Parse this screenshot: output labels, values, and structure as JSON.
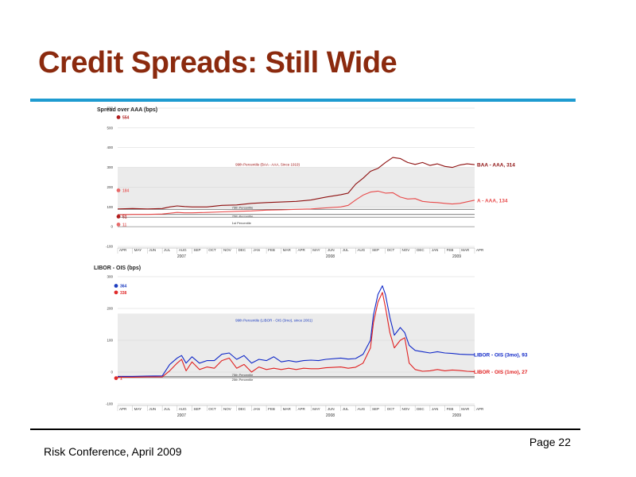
{
  "slide": {
    "title": "Credit Spreads: Still Wide",
    "footer_left": "Risk Conference, April 2009",
    "footer_right": "Page 22",
    "colors": {
      "title": "#8b2a0e",
      "rule": "#1e9bd0"
    }
  },
  "chart_data": [
    {
      "type": "line",
      "title": "Spread over AAA (bps)",
      "ylim": [
        -100,
        600
      ],
      "yticks": [
        "-100",
        "0",
        "100",
        "200",
        "300",
        "400",
        "500",
        "600"
      ],
      "months": [
        "APR",
        "MAY",
        "JUN",
        "JUL",
        "AUG",
        "SEP",
        "OCT",
        "NOV",
        "DEC",
        "JAN",
        "FEB",
        "MAR",
        "APR",
        "MAY",
        "JUN",
        "JUL",
        "AUG",
        "SEP",
        "OCT",
        "NOV",
        "DEC",
        "JAN",
        "FEB",
        "MAR",
        "APR"
      ],
      "years": [
        {
          "label": "2007",
          "month_index": 4
        },
        {
          "label": "2008",
          "month_index": 14
        },
        {
          "label": "2009",
          "month_index": 22.5
        }
      ],
      "band": {
        "low": 95,
        "high": 300,
        "label": "99th Percentile (BAA - AAA, Since 1919)"
      },
      "reference_lines": [
        {
          "value": 88,
          "label": "75th Percentile"
        },
        {
          "value": 62,
          "label": "25th Percentile"
        },
        {
          "value": 48,
          "label": "1st Percentile"
        }
      ],
      "left_markers": [
        {
          "value": 554,
          "label": "554",
          "color": "#b01c1c"
        },
        {
          "value": 184,
          "label": "184",
          "color": "#e86a6a"
        },
        {
          "value": 51,
          "label": "51",
          "color": "#b01c1c"
        },
        {
          "value": 11,
          "label": "11",
          "color": "#e86a6a"
        }
      ],
      "series": [
        {
          "name": "BAA - AAA",
          "end_label": "BAA - AAA, 314",
          "color": "#8e1010",
          "x": [
            0,
            1,
            2,
            3,
            3.5,
            4,
            4.5,
            5,
            6,
            7,
            8,
            9,
            10,
            11,
            12,
            13,
            14,
            15,
            15.5,
            16,
            16.5,
            17,
            17.5,
            18,
            18.5,
            19,
            19.5,
            20,
            20.5,
            21,
            21.5,
            22,
            22.5,
            23,
            23.5,
            24
          ],
          "y": [
            90,
            92,
            90,
            92,
            100,
            105,
            102,
            100,
            100,
            108,
            110,
            118,
            122,
            125,
            128,
            135,
            150,
            162,
            170,
            215,
            245,
            280,
            295,
            325,
            350,
            345,
            325,
            315,
            325,
            310,
            318,
            305,
            300,
            312,
            318,
            314
          ]
        },
        {
          "name": "A - AAA",
          "end_label": "A - AAA, 134",
          "color": "#e84a4a",
          "x": [
            0,
            1,
            2,
            3,
            3.5,
            4,
            4.5,
            5,
            6,
            7,
            8,
            9,
            10,
            11,
            12,
            13,
            14,
            15,
            15.5,
            16,
            16.5,
            17,
            17.5,
            18,
            18.5,
            19,
            19.5,
            20,
            20.5,
            21,
            21.5,
            22,
            22.5,
            23,
            23.5,
            24
          ],
          "y": [
            60,
            62,
            62,
            64,
            68,
            72,
            70,
            70,
            72,
            75,
            78,
            80,
            84,
            85,
            88,
            90,
            95,
            100,
            108,
            135,
            160,
            175,
            180,
            170,
            172,
            150,
            140,
            142,
            128,
            124,
            122,
            118,
            115,
            118,
            126,
            134
          ]
        }
      ]
    },
    {
      "type": "line",
      "title": "LIBOR - OIS (bps)",
      "ylim": [
        -100,
        400
      ],
      "yticks": [
        "-100",
        "0",
        "100",
        "200",
        "300"
      ],
      "months": [
        "APR",
        "MAY",
        "JUN",
        "JUL",
        "AUG",
        "SEP",
        "OCT",
        "NOV",
        "DEC",
        "JAN",
        "FEB",
        "MAR",
        "APR",
        "MAY",
        "JUN",
        "JUL",
        "AUG",
        "SEP",
        "OCT",
        "NOV",
        "DEC",
        "JAN",
        "FEB",
        "MAR",
        "APR"
      ],
      "years": [
        {
          "label": "2007",
          "month_index": 4
        },
        {
          "label": "2008",
          "month_index": 14
        },
        {
          "label": "2009",
          "month_index": 22.5
        }
      ],
      "band": {
        "low": 10,
        "high": 255,
        "label": "99th Percentile (LIBOR - OIS (3mo), since 2001)"
      },
      "reference_lines": [
        {
          "value": 7,
          "label": "75th Percentile"
        },
        {
          "value": 3,
          "label": "25th Percentile"
        }
      ],
      "left_markers": [
        {
          "value": 364,
          "label": "364",
          "color": "#1c3cc0"
        },
        {
          "value": 338,
          "label": "338",
          "color": "#e02a2a"
        },
        {
          "value": 1,
          "label": "1",
          "color": "#e02a2a"
        }
      ],
      "series": [
        {
          "name": "LIBOR - OIS (3mo)",
          "end_label": "LIBOR - OIS (3mo), 93",
          "color": "#1028c8",
          "x": [
            0,
            1,
            2,
            3,
            3.5,
            4,
            4.3,
            4.6,
            5,
            5.5,
            6,
            6.5,
            7,
            7.5,
            8,
            8.5,
            9,
            9.5,
            10,
            10.5,
            11,
            11.5,
            12,
            12.5,
            13,
            13.5,
            14,
            15,
            15.5,
            16,
            16.5,
            17,
            17.2,
            17.5,
            17.8,
            18,
            18.3,
            18.6,
            19,
            19.3,
            19.6,
            20,
            20.5,
            21,
            21.5,
            22,
            22.5,
            23,
            23.5,
            24
          ],
          "y": [
            8,
            8,
            9,
            10,
            55,
            80,
            90,
            60,
            85,
            60,
            70,
            70,
            95,
            100,
            75,
            90,
            60,
            75,
            70,
            85,
            65,
            70,
            65,
            70,
            72,
            70,
            75,
            80,
            76,
            78,
            95,
            150,
            250,
            330,
            364,
            330,
            240,
            170,
            200,
            180,
            130,
            110,
            105,
            100,
            105,
            100,
            98,
            95,
            94,
            93
          ]
        },
        {
          "name": "LIBOR - OIS (1mo)",
          "end_label": "LIBOR - OIS (1mo), 27",
          "color": "#e02020",
          "x": [
            0,
            1,
            2,
            3,
            3.5,
            4,
            4.3,
            4.6,
            5,
            5.5,
            6,
            6.5,
            7,
            7.5,
            8,
            8.5,
            9,
            9.5,
            10,
            10.5,
            11,
            11.5,
            12,
            12.5,
            13,
            13.5,
            14,
            15,
            15.5,
            16,
            16.5,
            17,
            17.2,
            17.5,
            17.8,
            18,
            18.3,
            18.6,
            19,
            19.3,
            19.6,
            20,
            20.5,
            21,
            21.5,
            22,
            22.5,
            23,
            23.5,
            24
          ],
          "y": [
            5,
            5,
            6,
            6,
            30,
            60,
            75,
            30,
            65,
            35,
            45,
            40,
            70,
            80,
            40,
            55,
            25,
            45,
            35,
            40,
            35,
            40,
            35,
            40,
            38,
            38,
            42,
            45,
            40,
            44,
            60,
            120,
            220,
            300,
            338,
            280,
            180,
            120,
            150,
            160,
            60,
            35,
            28,
            30,
            35,
            30,
            33,
            31,
            28,
            27
          ]
        }
      ]
    }
  ]
}
